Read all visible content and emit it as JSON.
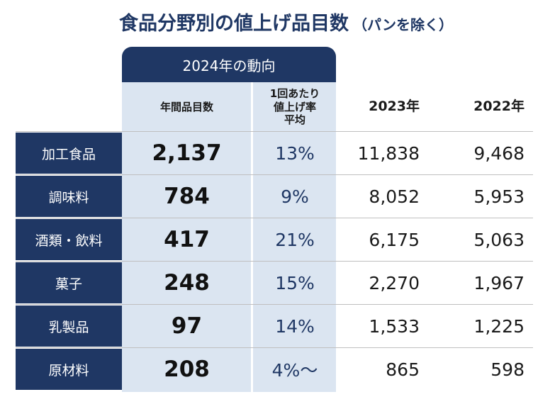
{
  "chart_data": {
    "type": "table",
    "title": "食品分野別の値上げ品目数",
    "subtitle": "（パンを除く）",
    "group_header": "2024年の動向",
    "columns": [
      "年間品目数",
      "1回あたり\n値上げ率\n平均",
      "2023年",
      "2022年"
    ],
    "rows": [
      {
        "category": "加工食品",
        "items": "2,137",
        "rate": "13%",
        "y2023": "11,838",
        "y2022": "9,468"
      },
      {
        "category": "調味料",
        "items": "784",
        "rate": "9%",
        "y2023": "8,052",
        "y2022": "5,953"
      },
      {
        "category": "酒類・飲料",
        "items": "417",
        "rate": "21%",
        "y2023": "6,175",
        "y2022": "5,063"
      },
      {
        "category": "菓子",
        "items": "248",
        "rate": "15%",
        "y2023": "2,270",
        "y2022": "1,967"
      },
      {
        "category": "乳製品",
        "items": "97",
        "rate": "14%",
        "y2023": "1,533",
        "y2022": "1,225"
      },
      {
        "category": "原材料",
        "items": "208",
        "rate": "4%～",
        "y2023": "865",
        "y2022": "598"
      }
    ],
    "colors": {
      "navy": "#1f3764",
      "highlight": "#dbe5f1"
    }
  }
}
